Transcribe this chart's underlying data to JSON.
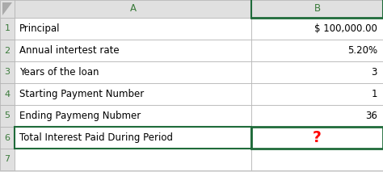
{
  "col_headers": [
    "A",
    "B"
  ],
  "rows": [
    [
      "Principal",
      "$ 100,000.00"
    ],
    [
      "Annual intertest rate",
      "5.20%"
    ],
    [
      "Years of the loan",
      "3"
    ],
    [
      "Starting Payment Number",
      "1"
    ],
    [
      "Ending Paymeng Nubmer",
      "36"
    ],
    [
      "Total Interest Paid During Period",
      "?"
    ]
  ],
  "header_bg": "#e0e0e0",
  "cell_bg": "#ffffff",
  "selected_border_color": "#1f6b3a",
  "grid_color": "#b0b0b0",
  "text_color": "#000000",
  "question_color": "#ff0000",
  "header_text_color": "#3a7a3a",
  "row_num_color": "#3a7a3a",
  "font_size": 8.5,
  "header_font_size": 8.5,
  "figsize": [
    4.74,
    2.13
  ],
  "dpi": 100,
  "n_data_rows": 6,
  "n_extra_rows": 1
}
